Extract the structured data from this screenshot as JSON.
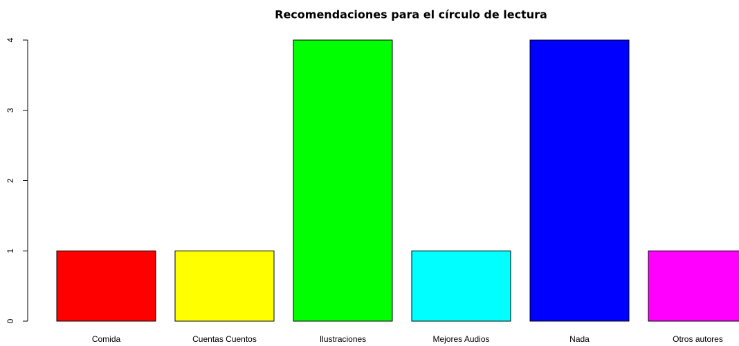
{
  "chart_data": {
    "type": "bar",
    "title": "Recomendaciones para el círculo de lectura",
    "categories": [
      "Comida",
      "Cuentas Cuentos",
      "Ilustraciones",
      "Mejores Audios",
      "Nada",
      "Otros autores"
    ],
    "values": [
      1,
      1,
      4,
      1,
      4,
      1
    ],
    "colors": [
      "#ff0000",
      "#ffff00",
      "#00ff00",
      "#00ffff",
      "#0000ff",
      "#ff00ff"
    ],
    "ylim": [
      0,
      4
    ],
    "yticks": [
      0,
      1,
      2,
      3,
      4
    ],
    "grid": false
  }
}
